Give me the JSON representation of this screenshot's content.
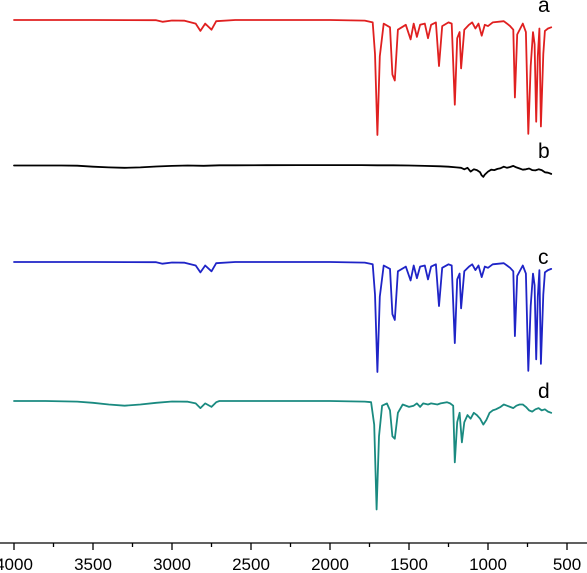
{
  "chart_data": {
    "type": "line",
    "title": "",
    "xlabel": "",
    "ylabel": "",
    "x_reversed": true,
    "xlim": [
      4000,
      500
    ],
    "x_ticks": [
      {
        "value": 4000,
        "label": "4000"
      },
      {
        "value": 3500,
        "label": "3500"
      },
      {
        "value": 3000,
        "label": "3000"
      },
      {
        "value": 2500,
        "label": "2500"
      },
      {
        "value": 2000,
        "label": "2000"
      },
      {
        "value": 1500,
        "label": "1500"
      },
      {
        "value": 1000,
        "label": "1000"
      },
      {
        "value": 500,
        "label": "500"
      }
    ],
    "y_axis_shown": false,
    "y_units": "relative transmittance (offset, a.u.)",
    "grid": false,
    "legend": "none",
    "series": [
      {
        "label": "a",
        "color": "#e02020",
        "points": [
          [
            4000,
            100
          ],
          [
            3500,
            100
          ],
          [
            3100,
            99.8
          ],
          [
            3060,
            98.5
          ],
          [
            3000,
            99.6
          ],
          [
            2920,
            99.4
          ],
          [
            2850,
            97
          ],
          [
            2820,
            91
          ],
          [
            2790,
            97
          ],
          [
            2750,
            92
          ],
          [
            2720,
            99
          ],
          [
            2600,
            100
          ],
          [
            2000,
            100
          ],
          [
            1780,
            99.5
          ],
          [
            1730,
            98
          ],
          [
            1715,
            72
          ],
          [
            1700,
            5
          ],
          [
            1685,
            70
          ],
          [
            1660,
            97
          ],
          [
            1620,
            94
          ],
          [
            1605,
            55
          ],
          [
            1590,
            50
          ],
          [
            1570,
            92
          ],
          [
            1520,
            96
          ],
          [
            1490,
            84
          ],
          [
            1470,
            97
          ],
          [
            1450,
            86
          ],
          [
            1430,
            96
          ],
          [
            1400,
            97
          ],
          [
            1380,
            85
          ],
          [
            1360,
            96
          ],
          [
            1330,
            98
          ],
          [
            1310,
            62
          ],
          [
            1290,
            95
          ],
          [
            1250,
            98
          ],
          [
            1230,
            97
          ],
          [
            1210,
            30
          ],
          [
            1195,
            85
          ],
          [
            1180,
            90
          ],
          [
            1170,
            60
          ],
          [
            1150,
            92
          ],
          [
            1120,
            96
          ],
          [
            1100,
            98
          ],
          [
            1080,
            93
          ],
          [
            1060,
            97
          ],
          [
            1040,
            87
          ],
          [
            1020,
            96
          ],
          [
            1000,
            95
          ],
          [
            970,
            98
          ],
          [
            900,
            99
          ],
          [
            880,
            97
          ],
          [
            860,
            95
          ],
          [
            840,
            92
          ],
          [
            830,
            36
          ],
          [
            815,
            88
          ],
          [
            780,
            97
          ],
          [
            760,
            90
          ],
          [
            745,
            6
          ],
          [
            730,
            62
          ],
          [
            715,
            90
          ],
          [
            705,
            80
          ],
          [
            695,
            16
          ],
          [
            685,
            70
          ],
          [
            675,
            93
          ],
          [
            665,
            12
          ],
          [
            650,
            72
          ],
          [
            640,
            91
          ],
          [
            620,
            93
          ],
          [
            600,
            94
          ]
        ]
      },
      {
        "label": "b",
        "color": "#000000",
        "points": [
          [
            4000,
            96
          ],
          [
            3700,
            96
          ],
          [
            3600,
            95.5
          ],
          [
            3500,
            93
          ],
          [
            3400,
            91
          ],
          [
            3300,
            90
          ],
          [
            3200,
            91
          ],
          [
            3100,
            93.5
          ],
          [
            3000,
            95
          ],
          [
            2900,
            96
          ],
          [
            2800,
            95.2
          ],
          [
            2700,
            96.5
          ],
          [
            2600,
            96.6
          ],
          [
            2400,
            96.8
          ],
          [
            2200,
            97
          ],
          [
            2000,
            97
          ],
          [
            1800,
            97
          ],
          [
            1700,
            96.6
          ],
          [
            1600,
            96.5
          ],
          [
            1500,
            96
          ],
          [
            1400,
            95
          ],
          [
            1300,
            94
          ],
          [
            1250,
            93
          ],
          [
            1200,
            91
          ],
          [
            1170,
            90
          ],
          [
            1150,
            86
          ],
          [
            1130,
            90
          ],
          [
            1110,
            80
          ],
          [
            1090,
            86
          ],
          [
            1070,
            84
          ],
          [
            1050,
            78
          ],
          [
            1040,
            70
          ],
          [
            1030,
            66
          ],
          [
            1020,
            72
          ],
          [
            1000,
            80
          ],
          [
            980,
            85
          ],
          [
            960,
            84
          ],
          [
            940,
            87
          ],
          [
            920,
            89
          ],
          [
            900,
            93
          ],
          [
            880,
            90
          ],
          [
            860,
            92
          ],
          [
            840,
            95
          ],
          [
            820,
            91
          ],
          [
            800,
            88
          ],
          [
            780,
            85
          ],
          [
            760,
            86
          ],
          [
            740,
            88
          ],
          [
            720,
            84
          ],
          [
            700,
            83
          ],
          [
            680,
            86
          ],
          [
            660,
            84
          ],
          [
            640,
            78
          ],
          [
            620,
            77
          ],
          [
            600,
            74
          ]
        ]
      },
      {
        "label": "c",
        "color": "#1f24c7",
        "points": [
          [
            4000,
            100
          ],
          [
            3500,
            100
          ],
          [
            3100,
            99.8
          ],
          [
            3060,
            98.5
          ],
          [
            3000,
            99.6
          ],
          [
            2920,
            99.4
          ],
          [
            2850,
            97
          ],
          [
            2820,
            91
          ],
          [
            2790,
            97
          ],
          [
            2750,
            92
          ],
          [
            2720,
            99
          ],
          [
            2600,
            100
          ],
          [
            2000,
            100
          ],
          [
            1780,
            99.5
          ],
          [
            1730,
            98
          ],
          [
            1715,
            72
          ],
          [
            1700,
            5
          ],
          [
            1685,
            70
          ],
          [
            1660,
            97
          ],
          [
            1620,
            94
          ],
          [
            1605,
            55
          ],
          [
            1590,
            50
          ],
          [
            1570,
            92
          ],
          [
            1520,
            96
          ],
          [
            1490,
            84
          ],
          [
            1470,
            97
          ],
          [
            1450,
            86
          ],
          [
            1430,
            96
          ],
          [
            1400,
            97
          ],
          [
            1380,
            85
          ],
          [
            1360,
            96
          ],
          [
            1330,
            98
          ],
          [
            1310,
            62
          ],
          [
            1290,
            95
          ],
          [
            1250,
            98
          ],
          [
            1230,
            97
          ],
          [
            1210,
            30
          ],
          [
            1195,
            85
          ],
          [
            1180,
            90
          ],
          [
            1170,
            60
          ],
          [
            1150,
            92
          ],
          [
            1120,
            96
          ],
          [
            1100,
            98
          ],
          [
            1080,
            93
          ],
          [
            1060,
            97
          ],
          [
            1040,
            87
          ],
          [
            1020,
            96
          ],
          [
            1000,
            95
          ],
          [
            970,
            98
          ],
          [
            900,
            99
          ],
          [
            880,
            97
          ],
          [
            860,
            95
          ],
          [
            840,
            92
          ],
          [
            830,
            36
          ],
          [
            815,
            88
          ],
          [
            780,
            97
          ],
          [
            760,
            90
          ],
          [
            745,
            6
          ],
          [
            730,
            62
          ],
          [
            715,
            90
          ],
          [
            705,
            80
          ],
          [
            695,
            16
          ],
          [
            685,
            70
          ],
          [
            675,
            93
          ],
          [
            665,
            12
          ],
          [
            650,
            72
          ],
          [
            640,
            91
          ],
          [
            620,
            93
          ],
          [
            600,
            94
          ]
        ]
      },
      {
        "label": "d",
        "color": "#1a8a80",
        "points": [
          [
            4000,
            100
          ],
          [
            3800,
            100
          ],
          [
            3600,
            99.5
          ],
          [
            3500,
            98.5
          ],
          [
            3400,
            97
          ],
          [
            3300,
            96
          ],
          [
            3200,
            97
          ],
          [
            3100,
            98.5
          ],
          [
            3000,
            99.6
          ],
          [
            2900,
            99.4
          ],
          [
            2850,
            98
          ],
          [
            2820,
            94
          ],
          [
            2790,
            98
          ],
          [
            2750,
            95
          ],
          [
            2720,
            99
          ],
          [
            2700,
            100
          ],
          [
            2600,
            100
          ],
          [
            2000,
            100
          ],
          [
            1780,
            99.5
          ],
          [
            1740,
            99
          ],
          [
            1720,
            80
          ],
          [
            1705,
            8
          ],
          [
            1690,
            70
          ],
          [
            1670,
            96
          ],
          [
            1640,
            98
          ],
          [
            1620,
            92
          ],
          [
            1605,
            70
          ],
          [
            1590,
            68
          ],
          [
            1570,
            90
          ],
          [
            1540,
            97
          ],
          [
            1500,
            95
          ],
          [
            1470,
            96
          ],
          [
            1450,
            98
          ],
          [
            1430,
            95
          ],
          [
            1410,
            98
          ],
          [
            1380,
            97
          ],
          [
            1360,
            98
          ],
          [
            1320,
            97
          ],
          [
            1300,
            98
          ],
          [
            1260,
            99
          ],
          [
            1240,
            98
          ],
          [
            1220,
            96
          ],
          [
            1210,
            48
          ],
          [
            1195,
            82
          ],
          [
            1180,
            90
          ],
          [
            1165,
            65
          ],
          [
            1150,
            82
          ],
          [
            1130,
            88
          ],
          [
            1110,
            85
          ],
          [
            1090,
            90
          ],
          [
            1070,
            88
          ],
          [
            1050,
            85
          ],
          [
            1030,
            80
          ],
          [
            1010,
            84
          ],
          [
            990,
            90
          ],
          [
            970,
            92
          ],
          [
            950,
            93
          ],
          [
            920,
            95
          ],
          [
            900,
            97
          ],
          [
            880,
            96
          ],
          [
            860,
            95
          ],
          [
            840,
            94
          ],
          [
            820,
            96
          ],
          [
            800,
            97
          ],
          [
            780,
            97
          ],
          [
            760,
            95
          ],
          [
            740,
            92
          ],
          [
            720,
            91
          ],
          [
            700,
            93
          ],
          [
            680,
            94
          ],
          [
            660,
            92
          ],
          [
            640,
            93
          ],
          [
            620,
            91
          ],
          [
            600,
            90
          ]
        ]
      }
    ]
  }
}
